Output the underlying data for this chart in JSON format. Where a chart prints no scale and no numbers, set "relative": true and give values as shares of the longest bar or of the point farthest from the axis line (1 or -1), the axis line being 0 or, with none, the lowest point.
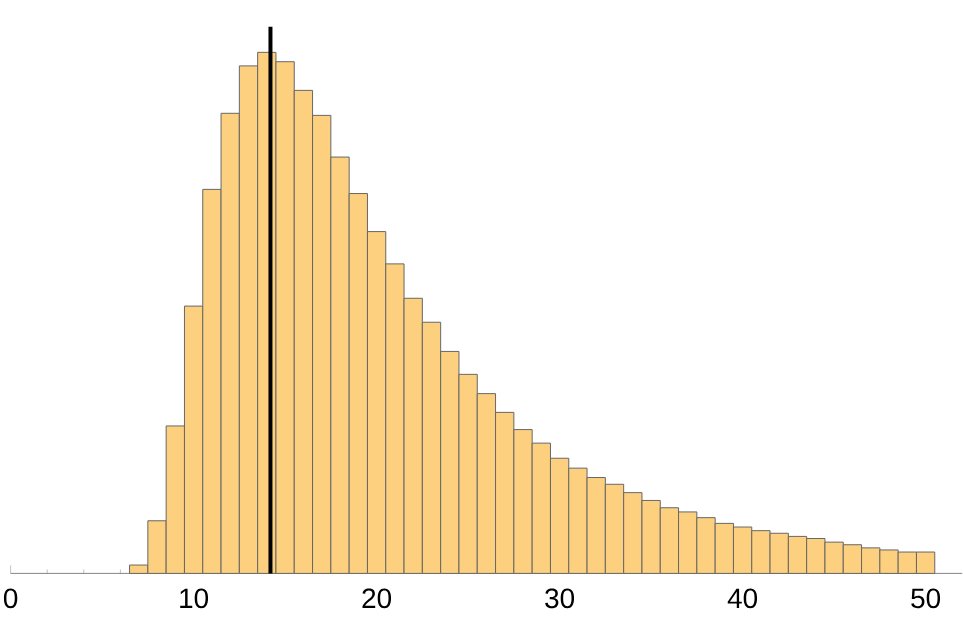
{
  "chart_data": {
    "type": "bar",
    "relative": true,
    "color": "#fdd07f",
    "x": [
      7,
      8,
      9,
      10,
      11,
      12,
      13,
      14,
      15,
      16,
      17,
      18,
      19,
      20,
      21,
      22,
      23,
      24,
      25,
      26,
      27,
      28,
      29,
      30,
      31,
      32,
      33,
      34,
      35,
      36,
      37,
      38,
      39,
      40,
      41,
      42,
      43,
      44,
      45,
      46,
      47,
      48,
      49,
      50
    ],
    "values": [
      0.016,
      0.101,
      0.283,
      0.513,
      0.737,
      0.883,
      0.974,
      1,
      0.982,
      0.927,
      0.879,
      0.799,
      0.729,
      0.656,
      0.594,
      0.528,
      0.482,
      0.426,
      0.382,
      0.345,
      0.309,
      0.276,
      0.25,
      0.221,
      0.202,
      0.184,
      0.171,
      0.155,
      0.14,
      0.126,
      0.118,
      0.107,
      0.096,
      0.089,
      0.082,
      0.077,
      0.071,
      0.067,
      0.06,
      0.055,
      0.049,
      0.045,
      0.041,
      0.041
    ],
    "xlim": [
      0,
      52
    ],
    "xticks": [
      {
        "value": 0,
        "label": "0"
      },
      {
        "value": 10,
        "label": "10"
      },
      {
        "value": 20,
        "label": "20"
      },
      {
        "value": 30,
        "label": "30"
      },
      {
        "value": 40,
        "label": "40"
      },
      {
        "value": 50,
        "label": "50"
      }
    ],
    "ref_lines": [
      {
        "axis": "x",
        "value": 14.2,
        "color": "#000000"
      }
    ]
  }
}
